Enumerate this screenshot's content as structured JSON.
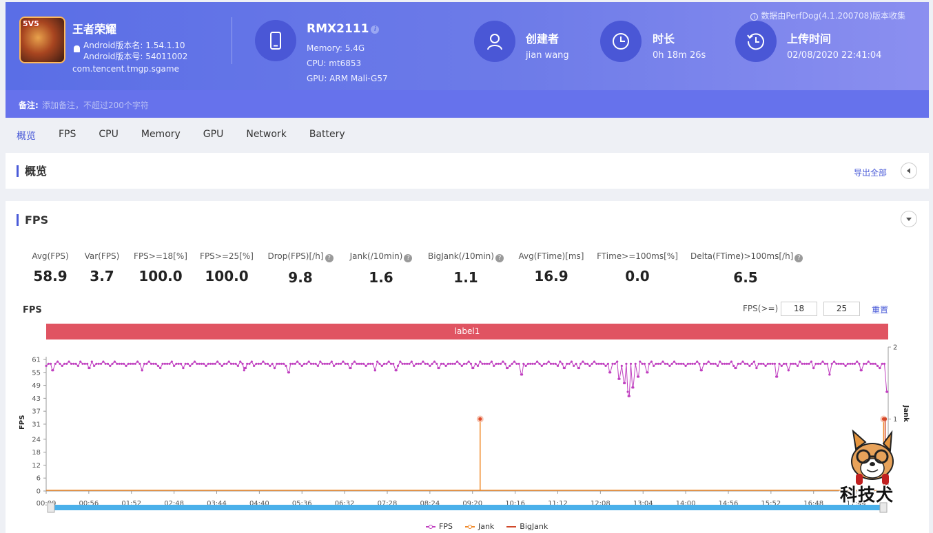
{
  "header": {
    "source_note": "数据由PerfDog(4.1.200708)版本收集",
    "app": {
      "icon_badge": "5V5",
      "name": "王者荣耀",
      "version_name": "Android版本名: 1.54.1.10",
      "version_code": "Android版本号: 54011002",
      "package": "com.tencent.tmgp.sgame"
    },
    "device": {
      "name": "RMX2111",
      "info_icon": "i",
      "memory": "Memory: 5.4G",
      "cpu": "CPU: mt6853",
      "gpu": "GPU: ARM Mali-G57"
    },
    "creator": {
      "title": "创建者",
      "value": "jian wang"
    },
    "duration": {
      "title": "时长",
      "value": "0h 18m 26s"
    },
    "upload": {
      "title": "上传时间",
      "value": "02/08/2020 22:41:04"
    },
    "remark": {
      "label": "备注:",
      "placeholder": "添加备注，不超过200个字符"
    }
  },
  "tabs": [
    "概览",
    "FPS",
    "CPU",
    "Memory",
    "GPU",
    "Network",
    "Battery"
  ],
  "overview": {
    "title": "概览",
    "export": "导出全部"
  },
  "fps_section": {
    "title": "FPS",
    "metrics": [
      {
        "label": "Avg(FPS)",
        "value": "58.9",
        "help": false
      },
      {
        "label": "Var(FPS)",
        "value": "3.7",
        "help": false
      },
      {
        "label": "FPS>=18[%]",
        "value": "100.0",
        "help": false
      },
      {
        "label": "FPS>=25[%]",
        "value": "100.0",
        "help": false
      },
      {
        "label": "Drop(FPS)[/h]",
        "value": "9.8",
        "help": true
      },
      {
        "label": "Jank(/10min)",
        "value": "1.6",
        "help": true
      },
      {
        "label": "BigJank(/10min)",
        "value": "1.1",
        "help": true
      },
      {
        "label": "Avg(FTime)[ms]",
        "value": "16.9",
        "help": false
      },
      {
        "label": "FTime>=100ms[%]",
        "value": "0.0",
        "help": false
      },
      {
        "label": "Delta(FTime)>100ms[/h]",
        "value": "6.5",
        "help": true
      }
    ],
    "help_glyph": "?",
    "chart_title": "FPS",
    "threshold_label": "FPS(>=)",
    "threshold_1": "18",
    "threshold_2": "25",
    "reset": "重置",
    "label_bar": "label1"
  },
  "watermark": {
    "text": "科技犬"
  },
  "chart_data": {
    "type": "line",
    "title": "FPS",
    "ylabel": "FPS",
    "y2label": "Jank",
    "ylim": [
      0,
      61
    ],
    "y_ticks": [
      0,
      6,
      12,
      18,
      24,
      31,
      37,
      43,
      49,
      55,
      61
    ],
    "y2lim": [
      0,
      2
    ],
    "y2_ticks": [
      1,
      2
    ],
    "x_ticks": [
      "00:00",
      "00:56",
      "01:52",
      "02:48",
      "03:44",
      "04:40",
      "05:36",
      "06:32",
      "07:28",
      "08:24",
      "09:20",
      "10:16",
      "11:12",
      "12:08",
      "13:04",
      "14:00",
      "14:56",
      "15:52",
      "16:48",
      "17:44"
    ],
    "duration_sec": 1106,
    "legend": [
      "FPS",
      "Jank",
      "BigJank"
    ],
    "colors": {
      "FPS": "#c040c0",
      "Jank": "#f08a2a",
      "BigJank": "#d0482a"
    },
    "series": [
      {
        "name": "FPS",
        "baseline": 59,
        "dips": [
          {
            "t": 8,
            "v": 56
          },
          {
            "t": 56,
            "v": 57
          },
          {
            "t": 126,
            "v": 56
          },
          {
            "t": 150,
            "v": 57
          },
          {
            "t": 180,
            "v": 57
          },
          {
            "t": 260,
            "v": 56
          },
          {
            "t": 262,
            "v": 57
          },
          {
            "t": 300,
            "v": 57
          },
          {
            "t": 319,
            "v": 55
          },
          {
            "t": 400,
            "v": 57
          },
          {
            "t": 432,
            "v": 56
          },
          {
            "t": 460,
            "v": 56
          },
          {
            "t": 515,
            "v": 57
          },
          {
            "t": 560,
            "v": 57
          },
          {
            "t": 605,
            "v": 57
          },
          {
            "t": 625,
            "v": 54
          },
          {
            "t": 680,
            "v": 57
          },
          {
            "t": 700,
            "v": 57
          },
          {
            "t": 740,
            "v": 55
          },
          {
            "t": 752,
            "v": 52
          },
          {
            "t": 760,
            "v": 50
          },
          {
            "t": 764,
            "v": 46
          },
          {
            "t": 766,
            "v": 44
          },
          {
            "t": 770,
            "v": 48
          },
          {
            "t": 778,
            "v": 53
          },
          {
            "t": 790,
            "v": 55
          },
          {
            "t": 860,
            "v": 56
          },
          {
            "t": 905,
            "v": 57
          },
          {
            "t": 933,
            "v": 57
          },
          {
            "t": 959,
            "v": 53
          },
          {
            "t": 975,
            "v": 56
          },
          {
            "t": 1008,
            "v": 57
          },
          {
            "t": 1029,
            "v": 54
          },
          {
            "t": 1070,
            "v": 56
          },
          {
            "t": 1095,
            "v": 57
          },
          {
            "t": 1105,
            "v": 46
          }
        ]
      },
      {
        "name": "Jank",
        "events": [
          {
            "t": 570,
            "v": 1
          },
          {
            "t": 1100,
            "v": 1
          }
        ]
      },
      {
        "name": "BigJank",
        "events": [
          {
            "t": 1102,
            "v": 1
          }
        ]
      }
    ]
  }
}
